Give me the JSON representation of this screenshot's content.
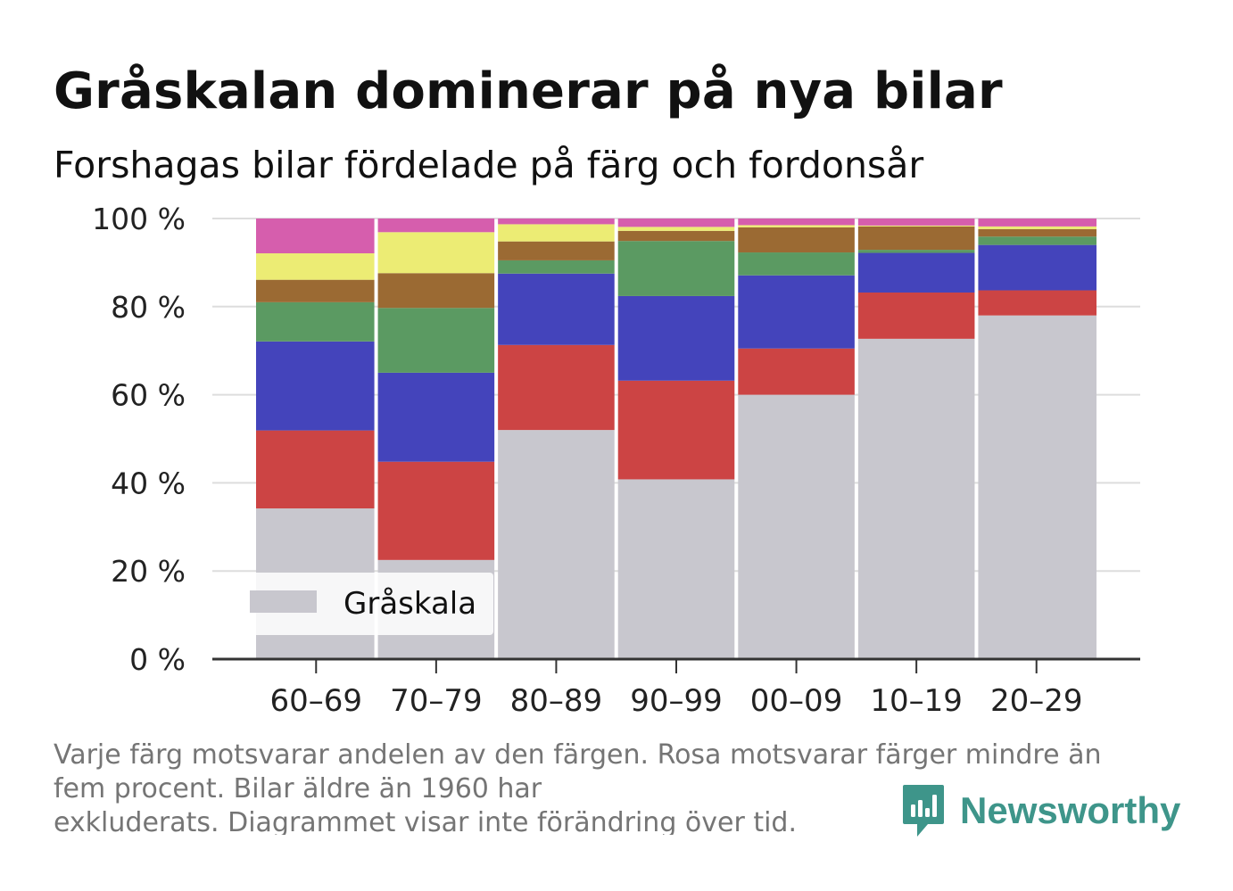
{
  "header": {
    "title": "Gråskalan dominerar på nya bilar",
    "subtitle": "Forshagas bilar fördelade på färg och fordonsår"
  },
  "footer": {
    "note_lines": [
      "Varje färg motsvarar andelen av den färgen. Rosa motsvarar färger mindre än",
      "fem procent. Bilar äldre än 1960 har",
      "exkluderats. Diagrammet visar inte förändring över tid."
    ],
    "brand": "Newsworthy"
  },
  "colors": {
    "brand": "#3e958a",
    "grid": "#dddddd",
    "axis": "#333333"
  },
  "chart_data": {
    "type": "bar",
    "stacked": true,
    "percent": true,
    "categories": [
      "60–69",
      "70–79",
      "80–89",
      "90–99",
      "00–09",
      "10–19",
      "20–29"
    ],
    "ylim": [
      0,
      100
    ],
    "yticks": [
      0,
      20,
      40,
      60,
      80,
      100
    ],
    "ytick_labels": [
      "0 %",
      "20 %",
      "40 %",
      "60 %",
      "80 %",
      "100 %"
    ],
    "grid": true,
    "legend": {
      "position": "bottom-left",
      "entries": [
        "Gråskala"
      ]
    },
    "series": [
      {
        "name": "Gråskala",
        "color": "#c8c7ce",
        "values": [
          34.2,
          22.5,
          52.0,
          40.8,
          60.0,
          72.7,
          78.0
        ]
      },
      {
        "color": "#cc4444",
        "values": [
          17.7,
          22.3,
          19.3,
          22.4,
          10.5,
          10.5,
          5.7
        ]
      },
      {
        "color": "#4444bb",
        "values": [
          20.2,
          20.2,
          16.2,
          19.2,
          16.6,
          9.0,
          10.3
        ]
      },
      {
        "color": "#5b9a62",
        "values": [
          8.9,
          14.7,
          3.0,
          12.5,
          5.2,
          0.7,
          1.9
        ]
      },
      {
        "color": "#9b6a33",
        "values": [
          5.1,
          7.9,
          4.3,
          2.3,
          5.7,
          5.3,
          1.7
        ]
      },
      {
        "color": "#ecec74",
        "values": [
          6.0,
          9.3,
          3.9,
          0.9,
          0.5,
          0.2,
          0.6
        ]
      },
      {
        "color": "#d65ead",
        "values": [
          7.9,
          3.1,
          1.3,
          1.9,
          1.5,
          1.6,
          1.8
        ]
      }
    ]
  }
}
